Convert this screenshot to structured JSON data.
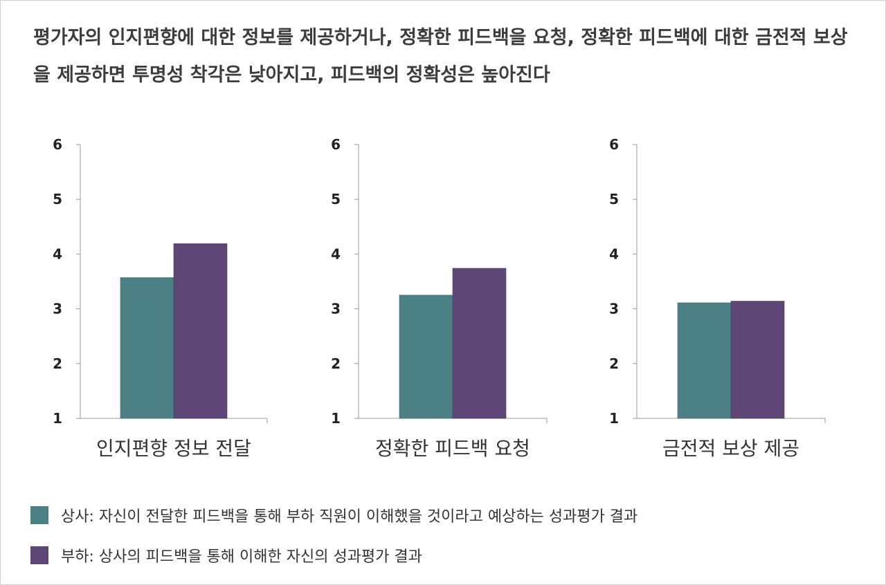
{
  "title": "평가자의 인지편향에 대한 정보를 제공하거나, 정확한 피드백을 요청, 정확한 피드백에 대한 금전적 보상을 제공하면 투명성 착각은 낮아지고, 피드백의 정확성은 높아진다",
  "colors": {
    "series1": "#4b8085",
    "series2": "#5e4777",
    "axis": "#999999"
  },
  "chart_data": [
    {
      "type": "bar",
      "title": "",
      "xlabel": "인지편향 정보 전달",
      "ylabel": "",
      "ylim": [
        1,
        6
      ],
      "yticks": [
        "1",
        "2",
        "3",
        "4",
        "5",
        "6"
      ],
      "series": [
        {
          "name": "상사",
          "values": [
            3.57
          ]
        },
        {
          "name": "부하",
          "values": [
            4.19
          ]
        }
      ]
    },
    {
      "type": "bar",
      "title": "",
      "xlabel": "정확한 피드백 요청",
      "ylabel": "",
      "ylim": [
        1,
        6
      ],
      "yticks": [
        "1",
        "2",
        "3",
        "4",
        "5",
        "6"
      ],
      "series": [
        {
          "name": "상사",
          "values": [
            3.25
          ]
        },
        {
          "name": "부하",
          "values": [
            3.74
          ]
        }
      ]
    },
    {
      "type": "bar",
      "title": "",
      "xlabel": "금전적 보상 제공",
      "ylabel": "",
      "ylim": [
        1,
        6
      ],
      "yticks": [
        "1",
        "2",
        "3",
        "4",
        "5",
        "6"
      ],
      "series": [
        {
          "name": "상사",
          "values": [
            3.11
          ]
        },
        {
          "name": "부하",
          "values": [
            3.14
          ]
        }
      ]
    }
  ],
  "legend": [
    {
      "label": "상사: 자신이 전달한 피드백을 통해 부하 직원이 이해했을 것이라고 예상하는 성과평가 결과"
    },
    {
      "label": "부하: 상사의 피드백을 통해 이해한 자신의 성과평가 결과"
    }
  ]
}
